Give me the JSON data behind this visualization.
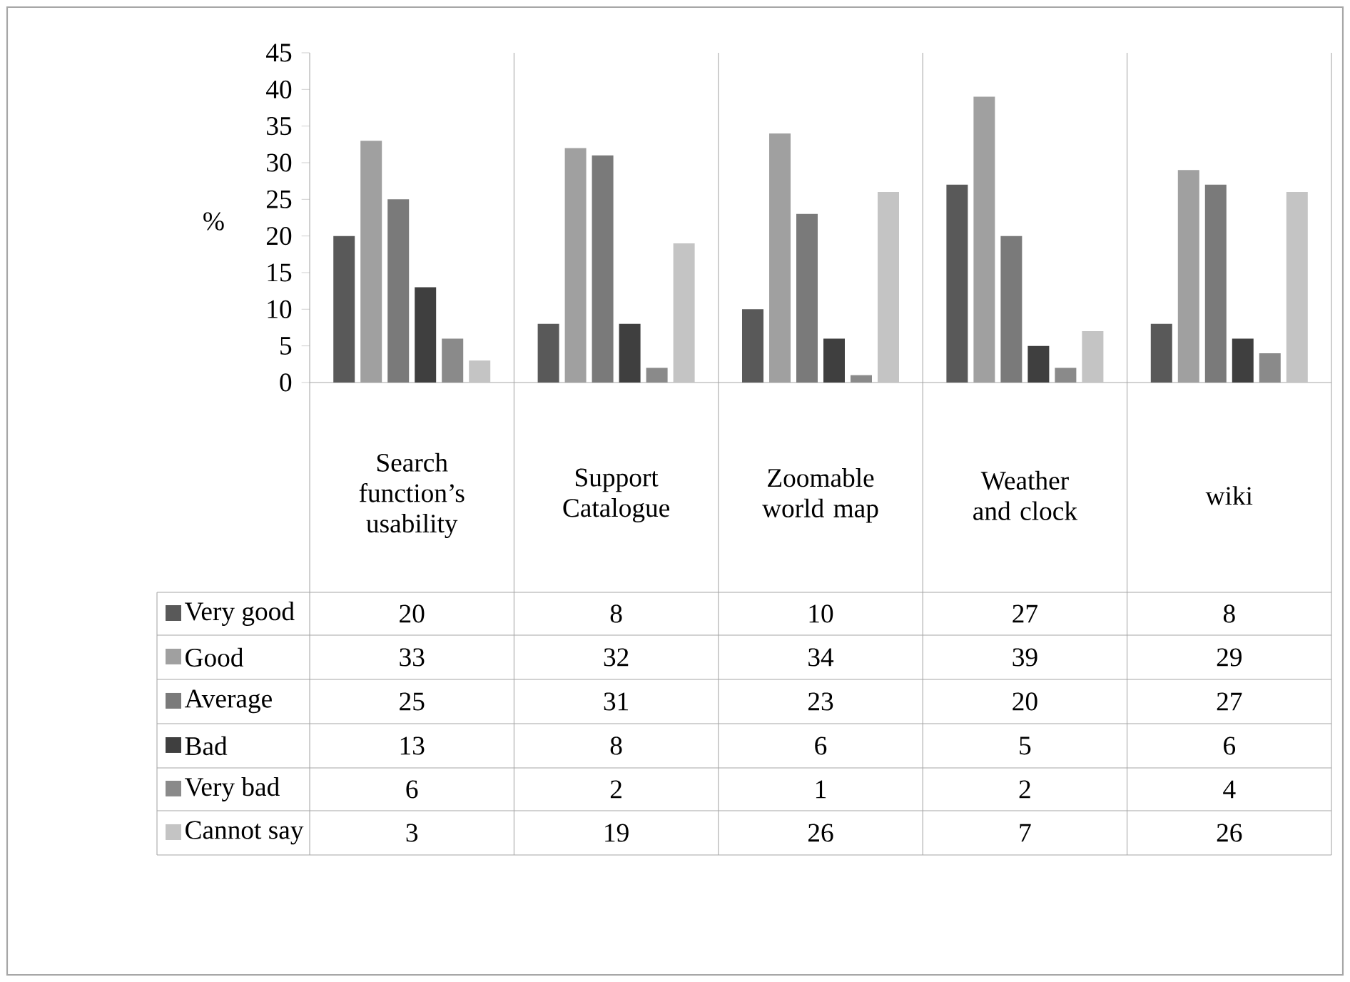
{
  "chart_data": {
    "type": "bar",
    "ylabel": "%",
    "categories": [
      "Search function’s usability",
      "Support Catalogue",
      "Zoomable world map",
      "Weather and clock",
      "wiki"
    ],
    "series": [
      {
        "name": "Very good",
        "color": "#595959",
        "values": [
          20,
          8,
          10,
          27,
          8
        ]
      },
      {
        "name": "Good",
        "color": "#a0a0a0",
        "values": [
          33,
          32,
          34,
          39,
          29
        ]
      },
      {
        "name": "Average",
        "color": "#7a7a7a",
        "values": [
          25,
          31,
          23,
          20,
          27
        ]
      },
      {
        "name": "Bad",
        "color": "#3f3f3f",
        "values": [
          13,
          8,
          6,
          5,
          6
        ]
      },
      {
        "name": "Very bad",
        "color": "#8a8a8a",
        "values": [
          6,
          2,
          1,
          2,
          4
        ]
      },
      {
        "name": "Cannot say",
        "color": "#c4c4c4",
        "values": [
          3,
          19,
          26,
          7,
          26
        ]
      }
    ],
    "ylim": [
      0,
      45
    ],
    "yticks": [
      0,
      5,
      10,
      15,
      20,
      25,
      30,
      35,
      40,
      45
    ],
    "data_labels": true,
    "legend": "bottom",
    "grid": false
  }
}
